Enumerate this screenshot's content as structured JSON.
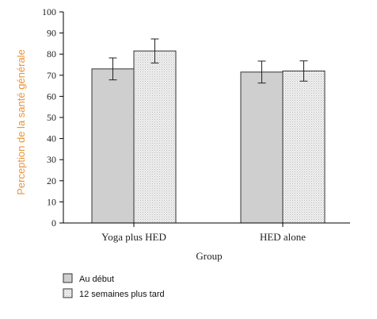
{
  "chart_data": {
    "type": "bar",
    "title": "",
    "xlabel": "Group",
    "ylabel": "Perception de la santé générale",
    "ylim": [
      0,
      100
    ],
    "yticks": [
      "0",
      "10",
      "20",
      "30",
      "40",
      "50",
      "60",
      "70",
      "80",
      "90",
      "100"
    ],
    "categories": [
      "Yoga plus HED",
      "HED alone"
    ],
    "series": [
      {
        "name": "Au début",
        "values": [
          73,
          71.5
        ],
        "errors": [
          5.2,
          5.2
        ]
      },
      {
        "name": "12 semaines plus tard",
        "values": [
          81.5,
          72
        ],
        "errors": [
          5.7,
          4.8
        ]
      }
    ],
    "legend_position": "bottom-left",
    "grid": false
  },
  "colors": {
    "ylabel": "#e8943a",
    "series_0_fill": "#cfcfcf",
    "series_1_fill": "#eeeeee",
    "axis": "#000000"
  }
}
